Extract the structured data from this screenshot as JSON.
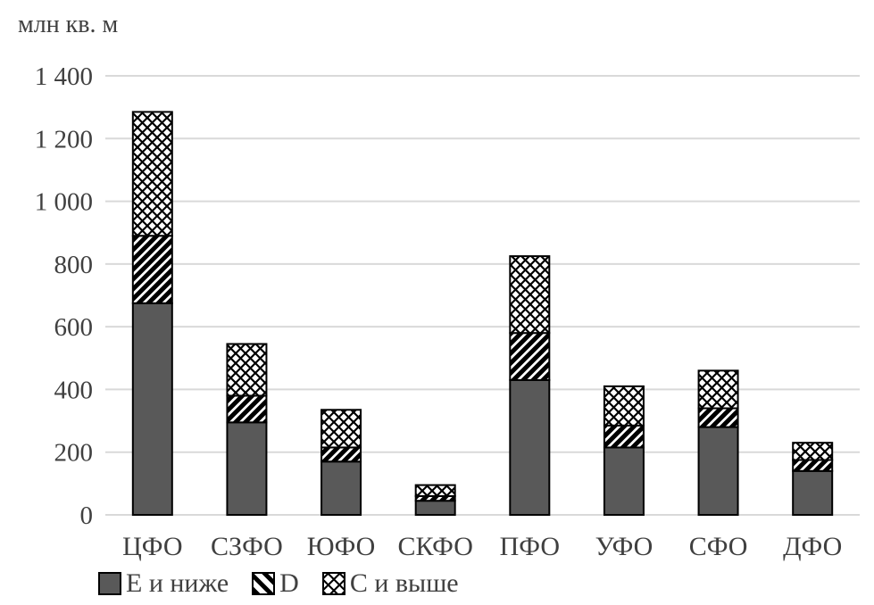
{
  "title": "млн кв. м",
  "colors": {
    "background": "#ffffff",
    "solid_fill": "#595959",
    "bar_border": "#000000",
    "gridline": "#d9d9d9",
    "text": "#404040",
    "hatch": "#000000"
  },
  "chart_data": {
    "type": "bar",
    "stacked": true,
    "title": "млн кв. м",
    "xlabel": "",
    "ylabel": "млн кв. м",
    "categories": [
      "ЦФО",
      "СЗФО",
      "ЮФО",
      "СКФО",
      "ПФО",
      "УФО",
      "СФО",
      "ДФО"
    ],
    "series": [
      {
        "name": "Е и ниже",
        "pattern": "solid-gray",
        "values": [
          675,
          295,
          170,
          45,
          430,
          215,
          280,
          140
        ]
      },
      {
        "name": "D",
        "pattern": "diagonal-hatch",
        "values": [
          215,
          85,
          45,
          15,
          150,
          70,
          60,
          35
        ]
      },
      {
        "name": "С и выше",
        "pattern": "diagonal-crosshatch",
        "values": [
          395,
          165,
          120,
          35,
          245,
          125,
          120,
          55
        ]
      }
    ],
    "totals": [
      1285,
      545,
      335,
      95,
      825,
      410,
      460,
      230
    ],
    "ylim": [
      0,
      1400
    ],
    "ytick_step": 200,
    "ytick_labels": [
      "0",
      "200",
      "400",
      "600",
      "800",
      "1 000",
      "1 200",
      "1 400"
    ],
    "grid": "horizontal",
    "legend_position": "bottom-left"
  },
  "legend": {
    "items": [
      {
        "label": "Е и ниже",
        "swatch": "solid-gray"
      },
      {
        "label": "D",
        "swatch": "diagonal-hatch"
      },
      {
        "label": "С и выше",
        "swatch": "diagonal-crosshatch"
      }
    ]
  }
}
